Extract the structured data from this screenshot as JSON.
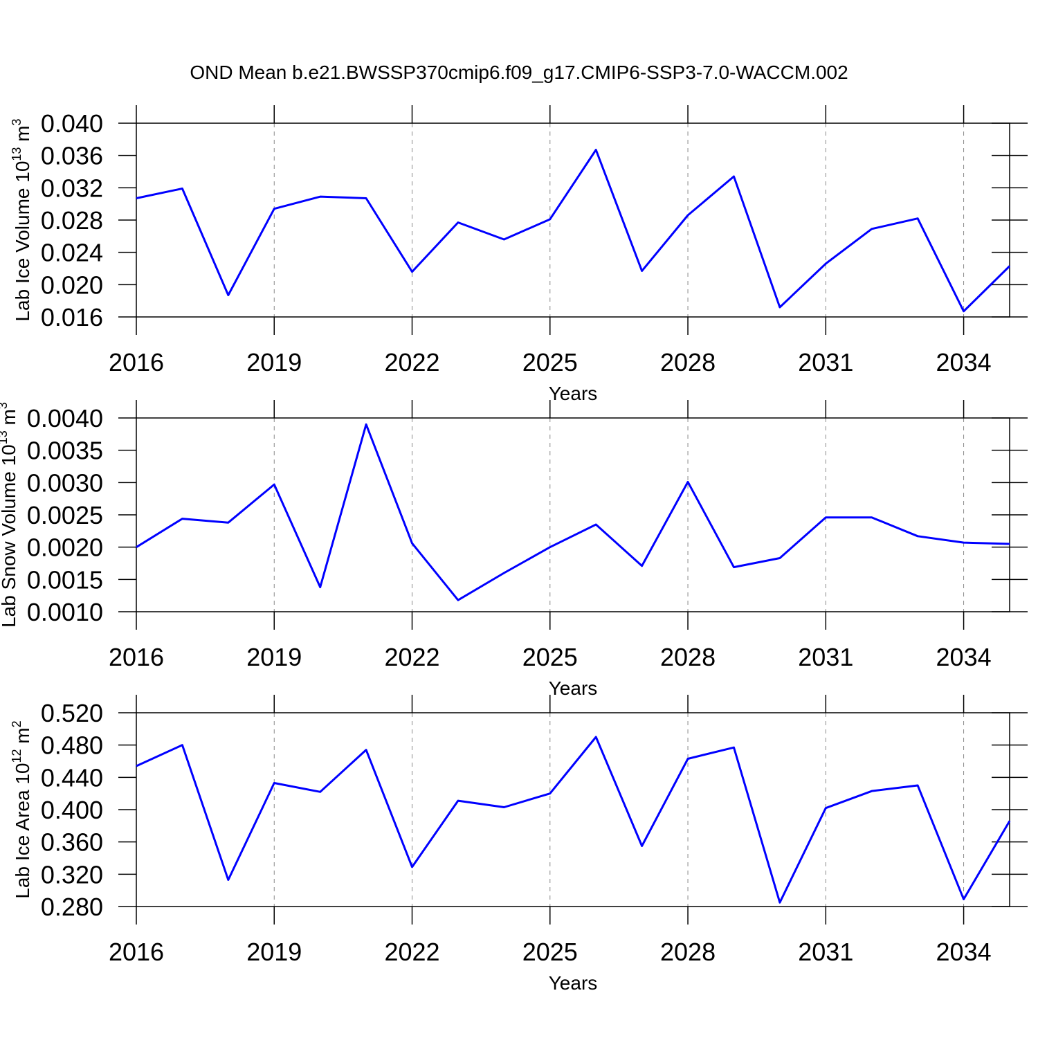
{
  "chart_data": [
    {
      "type": "line",
      "title": "OND Mean b.e21.BWSSP370cmip6.f09_g17.CMIP6-SSP3-7.0-WACCM.002",
      "ylabel": [
        "Lab Ice Volume 10",
        "13",
        " m",
        "3"
      ],
      "xlabel": "Years",
      "color": "#0000ff",
      "grid": true,
      "x": [
        2016,
        2017,
        2018,
        2019,
        2020,
        2021,
        2022,
        2023,
        2024,
        2025,
        2026,
        2027,
        2028,
        2029,
        2030,
        2031,
        2032,
        2033,
        2034,
        2035
      ],
      "values": [
        0.0307,
        0.0319,
        0.0187,
        0.0294,
        0.0309,
        0.0307,
        0.0216,
        0.0277,
        0.0256,
        0.0281,
        0.0367,
        0.0217,
        0.0286,
        0.0334,
        0.0172,
        0.0226,
        0.0269,
        0.0282,
        0.0167,
        0.0223
      ],
      "xlim": [
        2016,
        2035
      ],
      "xticks": [
        2016,
        2019,
        2022,
        2025,
        2028,
        2031,
        2034
      ],
      "ylim": [
        0.016,
        0.04
      ],
      "yticks": [
        {
          "value": 0.016,
          "label": "0.016"
        },
        {
          "value": 0.02,
          "label": "0.020"
        },
        {
          "value": 0.024,
          "label": "0.024"
        },
        {
          "value": 0.028,
          "label": "0.028"
        },
        {
          "value": 0.032,
          "label": "0.032"
        },
        {
          "value": 0.036,
          "label": "0.036"
        },
        {
          "value": 0.04,
          "label": "0.040"
        }
      ]
    },
    {
      "type": "line",
      "ylabel": [
        "Lab Snow Volume 10",
        "13",
        " m",
        "3"
      ],
      "xlabel": "Years",
      "color": "#0000ff",
      "grid": true,
      "x": [
        2016,
        2017,
        2018,
        2019,
        2020,
        2021,
        2022,
        2023,
        2024,
        2025,
        2026,
        2027,
        2028,
        2029,
        2030,
        2031,
        2032,
        2033,
        2034,
        2035
      ],
      "values": [
        0.002,
        0.00244,
        0.00238,
        0.00297,
        0.00138,
        0.0039,
        0.00206,
        0.00118,
        0.0016,
        0.002,
        0.00235,
        0.00171,
        0.00301,
        0.00169,
        0.00183,
        0.00246,
        0.00246,
        0.00217,
        0.00207,
        0.00205
      ],
      "xlim": [
        2016,
        2035
      ],
      "xticks": [
        2016,
        2019,
        2022,
        2025,
        2028,
        2031,
        2034
      ],
      "ylim": [
        0.001,
        0.004
      ],
      "yticks": [
        {
          "value": 0.001,
          "label": "0.0010"
        },
        {
          "value": 0.0015,
          "label": "0.0015"
        },
        {
          "value": 0.002,
          "label": "0.0020"
        },
        {
          "value": 0.0025,
          "label": "0.0025"
        },
        {
          "value": 0.003,
          "label": "0.0030"
        },
        {
          "value": 0.0035,
          "label": "0.0035"
        },
        {
          "value": 0.004,
          "label": "0.0040"
        }
      ]
    },
    {
      "type": "line",
      "ylabel": [
        "Lab Ice Area 10",
        "12",
        " m",
        "2"
      ],
      "xlabel": "Years",
      "color": "#0000ff",
      "grid": true,
      "x": [
        2016,
        2017,
        2018,
        2019,
        2020,
        2021,
        2022,
        2023,
        2024,
        2025,
        2026,
        2027,
        2028,
        2029,
        2030,
        2031,
        2032,
        2033,
        2034,
        2035
      ],
      "values": [
        0.454,
        0.48,
        0.313,
        0.433,
        0.422,
        0.474,
        0.329,
        0.411,
        0.403,
        0.42,
        0.49,
        0.355,
        0.463,
        0.477,
        0.285,
        0.402,
        0.423,
        0.43,
        0.289,
        0.386
      ],
      "xlim": [
        2016,
        2035
      ],
      "xticks": [
        2016,
        2019,
        2022,
        2025,
        2028,
        2031,
        2034
      ],
      "ylim": [
        0.28,
        0.52
      ],
      "yticks": [
        {
          "value": 0.28,
          "label": "0.280"
        },
        {
          "value": 0.32,
          "label": "0.320"
        },
        {
          "value": 0.36,
          "label": "0.360"
        },
        {
          "value": 0.4,
          "label": "0.400"
        },
        {
          "value": 0.44,
          "label": "0.440"
        },
        {
          "value": 0.48,
          "label": "0.480"
        },
        {
          "value": 0.52,
          "label": "0.520"
        }
      ]
    }
  ]
}
